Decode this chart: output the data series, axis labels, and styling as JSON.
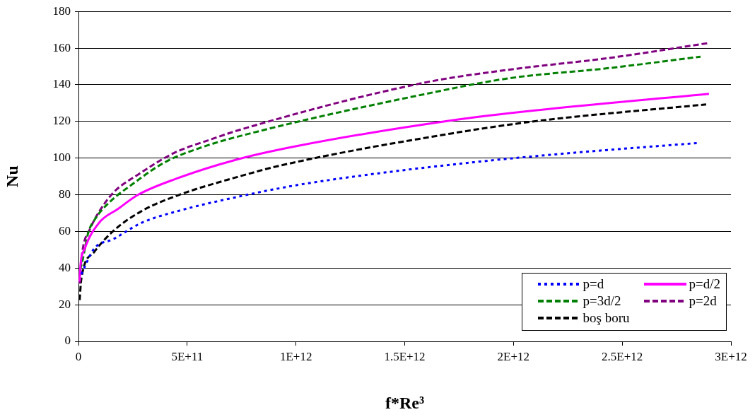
{
  "chart_data": {
    "type": "line",
    "xlabel": "f*Re³",
    "ylabel": "Nu",
    "xlim": [
      0,
      3000000000000.0
    ],
    "xticks": [
      0,
      {
        "value": 500000000000.0,
        "label": "5E+11"
      },
      {
        "value": 1000000000000.0,
        "label": "1E+12"
      },
      {
        "value": 1500000000000.0,
        "label": "1.5E+12"
      },
      {
        "value": 2000000000000.0,
        "label": "2E+12"
      },
      {
        "value": 2500000000000.0,
        "label": "2.5E+12"
      },
      {
        "value": 3000000000000.0,
        "label": "3E+12"
      }
    ],
    "ylim": [
      0,
      180
    ],
    "yticks": [
      0,
      20,
      40,
      60,
      80,
      100,
      120,
      140,
      160,
      180
    ],
    "grid": "y",
    "legend": "bottom right",
    "marker": "none",
    "series": [
      {
        "name": "p=d",
        "color": "#0000ff",
        "line_style": "dotted",
        "x": [
          13000000000.0,
          72000000000.0,
          159000000000.0,
          289000000000.0,
          473000000000.0,
          722000000000.0,
          992000000000.0,
          1367000000000.0,
          1847000000000.0,
          2237000000000.0,
          2854000000000.0
        ],
        "values": [
          36.6,
          50.6,
          55.7,
          64.6,
          71.6,
          78.6,
          85,
          91.5,
          98.1,
          102.5,
          108.3
        ]
      },
      {
        "name": "p=d/2",
        "color": "#ff00ff",
        "line_style": "solid",
        "x": [
          5400000000.0,
          7600000000.0,
          29000000000.0,
          94000000000.0,
          181000000000.0,
          273000000000.0,
          451000000000.0,
          722000000000.0,
          998000000000.0,
          1718000000000.0,
          2107000000000.0,
          2899000000000.0
        ],
        "values": [
          32.7,
          39.1,
          50.6,
          64.6,
          72.2,
          79.9,
          88.8,
          99,
          106.4,
          120.6,
          126.1,
          135.1
        ]
      },
      {
        "name": "p=3d/2",
        "color": "#008000",
        "line_style": "dashed",
        "x": [
          7600000000.0,
          18400000000.0,
          45500000000.0,
          78000000000.0,
          138000000000.0,
          246000000000.0,
          397000000000.0,
          570000000000.0,
          841000000000.0,
          1588000000000.0,
          1977000000000.0,
          2432000000000.0,
          2860000000000.0
        ],
        "values": [
          39,
          44,
          59.5,
          67,
          75.4,
          85.6,
          97.7,
          106,
          115,
          134.8,
          143.5,
          149,
          155.3
        ]
      },
      {
        "name": "p=2d",
        "color": "#800080",
        "line_style": "dashed",
        "x": [
          5400000000.0,
          13000000000.0,
          23800000000.0,
          50900000000.0,
          83000000000.0,
          159000000000.0,
          278000000000.0,
          440000000000.0,
          614000000000.0,
          744000000000.0,
          1588000000000.0,
          1977000000000.0,
          2432000000000.0,
          2893000000000.0
        ],
        "values": [
          31.5,
          44,
          53,
          60.8,
          68.4,
          81,
          91.3,
          102.8,
          110.4,
          115.5,
          141.1,
          148.2,
          154.5,
          162.7
        ]
      },
      {
        "name": "boş boru",
        "color": "#000000",
        "line_style": "dashed",
        "x": [
          5400000000.0,
          13000000000.0,
          72000000000.0,
          159000000000.0,
          289000000000.0,
          462000000000.0,
          722000000000.0,
          938000000000.0,
          1718000000000.0,
          2107000000000.0,
          2886000000000.0
        ],
        "values": [
          22.5,
          34,
          48.7,
          60.1,
          71,
          79.9,
          89.4,
          96.2,
          113.5,
          120.2,
          129.3
        ]
      }
    ]
  }
}
